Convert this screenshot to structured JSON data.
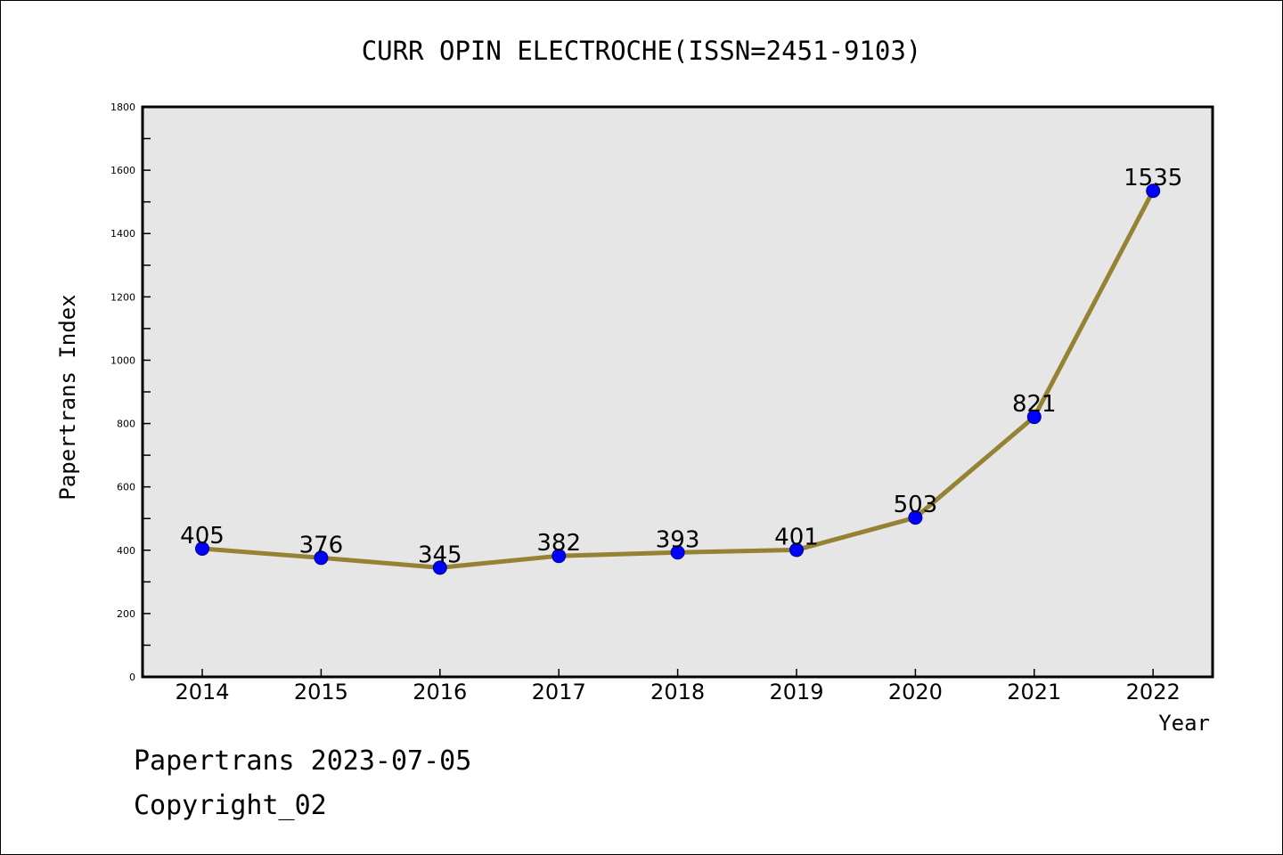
{
  "chart_data": {
    "type": "line",
    "title": "CURR OPIN ELECTROCHE(ISSN=2451-9103)",
    "xlabel": "Year",
    "ylabel": "Papertrans Index",
    "categories": [
      "2014",
      "2015",
      "2016",
      "2017",
      "2018",
      "2019",
      "2020",
      "2021",
      "2022"
    ],
    "values": [
      405,
      376,
      345,
      382,
      393,
      401,
      503,
      821,
      1535
    ],
    "ylim": [
      0,
      1800
    ],
    "yticks": [
      0,
      200,
      400,
      600,
      800,
      1000,
      1200,
      1400,
      1600,
      1800
    ],
    "grid": false,
    "line_color": "#958233",
    "marker_color": "#0000ff",
    "plot_background": "#e6e6e6"
  },
  "footer": {
    "line1": "Papertrans 2023-07-05",
    "line2": "Copyright_02"
  }
}
